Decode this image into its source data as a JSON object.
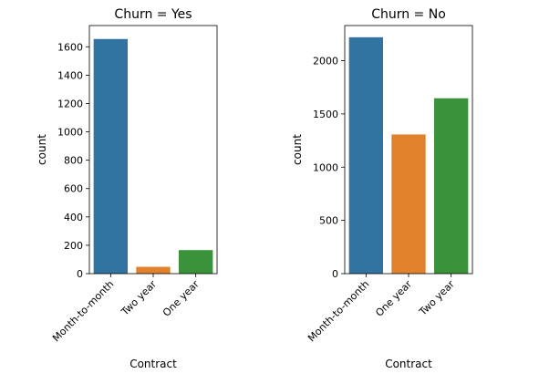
{
  "chart_data": [
    {
      "type": "bar",
      "title": "Churn = Yes",
      "xlabel": "Contract",
      "ylabel": "count",
      "categories": [
        "Month-to-month",
        "Two year",
        "One year"
      ],
      "values": [
        1655,
        48,
        166
      ],
      "colors": [
        "#3274a1",
        "#e1812c",
        "#3a923a"
      ],
      "ylim": [
        0,
        1750
      ],
      "yticks": [
        0,
        200,
        400,
        600,
        800,
        1000,
        1200,
        1400,
        1600
      ],
      "grid": false,
      "legend": "none"
    },
    {
      "type": "bar",
      "title": "Churn = No",
      "xlabel": "Contract",
      "ylabel": "count",
      "categories": [
        "Month-to-month",
        "One year",
        "Two year"
      ],
      "values": [
        2220,
        1307,
        1647
      ],
      "colors": [
        "#3274a1",
        "#e1812c",
        "#3a923a"
      ],
      "ylim": [
        0,
        2330
      ],
      "yticks": [
        0,
        500,
        1000,
        1500,
        2000
      ],
      "grid": false,
      "legend": "none"
    }
  ]
}
